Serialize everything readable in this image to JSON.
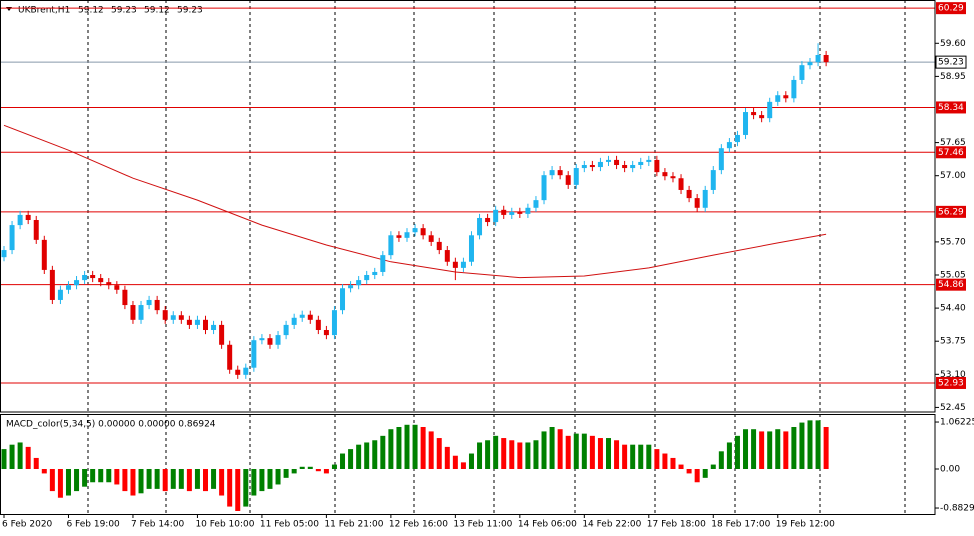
{
  "chart_data": [
    {
      "type": "candlestick",
      "symbol": "UKBrent,H1",
      "header_prices": [
        59.12,
        59.23,
        59.12,
        59.23
      ],
      "up_color": "#1fb5ef",
      "down_color": "#e00000",
      "categories": [
        "6 Feb 2020",
        null,
        null,
        null,
        null,
        null,
        null,
        null,
        "6 Feb 19:00",
        null,
        null,
        null,
        null,
        null,
        null,
        null,
        "7 Feb 14:00",
        null,
        null,
        null,
        null,
        null,
        null,
        null,
        "10 Feb 10:00",
        null,
        null,
        null,
        null,
        null,
        null,
        null,
        "11 Feb 05:00",
        null,
        null,
        null,
        null,
        null,
        null,
        null,
        "11 Feb 21:00",
        null,
        null,
        null,
        null,
        null,
        null,
        null,
        "12 Feb 16:00",
        null,
        null,
        null,
        null,
        null,
        null,
        null,
        "13 Feb 11:00",
        null,
        null,
        null,
        null,
        null,
        null,
        null,
        "14 Feb 06:00",
        null,
        null,
        null,
        null,
        null,
        null,
        null,
        "14 Feb 22:00",
        null,
        null,
        null,
        null,
        null,
        null,
        null,
        "17 Feb 18:00",
        null,
        null,
        null,
        null,
        null,
        null,
        null,
        "18 Feb 17:00",
        null,
        null,
        null,
        null,
        null,
        null,
        null,
        "19 Feb 12:00",
        null,
        null,
        null,
        null,
        null,
        null
      ],
      "open": [
        55.4,
        55.54,
        56.03,
        56.23,
        56.13,
        55.74,
        55.15,
        54.56,
        54.76,
        54.85,
        54.95,
        55.05,
        54.99,
        54.91,
        54.85,
        54.76,
        54.46,
        54.17,
        54.46,
        54.56,
        54.36,
        54.17,
        54.26,
        54.17,
        54.07,
        54.17,
        53.97,
        54.07,
        53.68,
        53.19,
        53.09,
        53.23,
        53.77,
        53.81,
        53.68,
        53.87,
        54.07,
        54.21,
        54.27,
        54.17,
        53.97,
        53.87,
        54.36,
        54.79,
        54.85,
        54.95,
        55.05,
        55.11,
        55.44,
        55.83,
        55.78,
        55.89,
        55.97,
        55.83,
        55.7,
        55.54,
        55.31,
        55.19,
        55.31,
        55.83,
        56.17,
        56.09,
        56.33,
        56.23,
        56.29,
        56.25,
        56.37,
        56.52,
        57.01,
        57.11,
        57.01,
        56.82,
        57.15,
        57.21,
        57.17,
        57.27,
        57.31,
        57.21,
        57.15,
        57.21,
        57.27,
        57.31,
        57.07,
        56.99,
        56.95,
        56.72,
        56.56,
        56.37,
        56.72,
        57.11,
        57.54,
        57.66,
        57.8,
        58.25,
        58.19,
        58.13,
        58.45,
        58.58,
        58.52,
        58.88,
        59.17,
        59.23,
        59.37
      ],
      "high": [
        55.62,
        56.11,
        56.31,
        56.31,
        56.21,
        55.82,
        55.23,
        54.84,
        54.93,
        55.03,
        55.13,
        55.13,
        55.07,
        54.99,
        54.93,
        54.84,
        54.54,
        54.54,
        54.64,
        54.64,
        54.44,
        54.34,
        54.34,
        54.25,
        54.25,
        54.25,
        54.15,
        54.15,
        53.76,
        53.27,
        53.31,
        53.85,
        53.89,
        53.89,
        53.95,
        54.15,
        54.29,
        54.35,
        54.35,
        54.25,
        54.05,
        54.44,
        54.87,
        54.93,
        55.03,
        55.13,
        55.19,
        55.52,
        55.91,
        55.91,
        55.97,
        56.05,
        56.05,
        55.91,
        55.78,
        55.62,
        55.39,
        55.39,
        55.91,
        56.25,
        56.25,
        56.41,
        56.41,
        56.37,
        56.37,
        56.45,
        56.6,
        57.09,
        57.19,
        57.19,
        57.09,
        57.23,
        57.29,
        57.29,
        57.35,
        57.39,
        57.39,
        57.29,
        57.29,
        57.35,
        57.39,
        57.39,
        57.15,
        57.07,
        57.03,
        56.8,
        56.64,
        56.8,
        57.19,
        57.62,
        57.74,
        57.88,
        58.33,
        58.33,
        58.27,
        58.53,
        58.66,
        58.66,
        58.96,
        59.25,
        59.31,
        59.6,
        59.45
      ],
      "low": [
        55.32,
        55.46,
        55.95,
        56.05,
        55.66,
        55.07,
        54.48,
        54.48,
        54.68,
        54.77,
        54.87,
        54.91,
        54.83,
        54.77,
        54.68,
        54.38,
        54.09,
        54.09,
        54.38,
        54.28,
        54.09,
        54.09,
        54.09,
        53.99,
        53.99,
        53.89,
        53.89,
        53.6,
        53.11,
        53.01,
        53.01,
        53.15,
        53.69,
        53.6,
        53.6,
        53.79,
        53.99,
        54.13,
        54.09,
        53.89,
        53.79,
        53.79,
        54.28,
        54.71,
        54.77,
        54.87,
        54.97,
        55.03,
        55.36,
        55.7,
        55.7,
        55.81,
        55.75,
        55.62,
        55.46,
        55.23,
        54.95,
        55.11,
        55.23,
        55.75,
        56.01,
        56.01,
        56.15,
        56.15,
        56.17,
        56.17,
        56.29,
        56.44,
        56.93,
        56.93,
        56.74,
        56.74,
        57.07,
        57.09,
        57.09,
        57.19,
        57.13,
        57.07,
        57.07,
        57.13,
        57.19,
        56.99,
        56.91,
        56.87,
        56.64,
        56.48,
        56.29,
        56.29,
        56.64,
        57.03,
        57.46,
        57.58,
        57.72,
        58.11,
        58.05,
        58.05,
        58.37,
        58.44,
        58.44,
        58.8,
        59.09,
        59.15,
        59.15
      ],
      "close": [
        55.54,
        56.03,
        56.23,
        56.13,
        55.74,
        55.15,
        54.56,
        54.76,
        54.85,
        54.95,
        55.05,
        54.99,
        54.91,
        54.85,
        54.76,
        54.46,
        54.17,
        54.46,
        54.56,
        54.36,
        54.17,
        54.26,
        54.17,
        54.07,
        54.17,
        53.97,
        54.07,
        53.68,
        53.19,
        53.09,
        53.23,
        53.77,
        53.81,
        53.68,
        53.87,
        54.07,
        54.21,
        54.27,
        54.17,
        53.97,
        53.87,
        54.36,
        54.79,
        54.85,
        54.95,
        55.05,
        55.11,
        55.44,
        55.83,
        55.78,
        55.89,
        55.97,
        55.83,
        55.7,
        55.54,
        55.31,
        55.19,
        55.31,
        55.83,
        56.17,
        56.09,
        56.33,
        56.23,
        56.29,
        56.25,
        56.37,
        56.52,
        57.01,
        57.11,
        57.01,
        56.82,
        57.15,
        57.21,
        57.17,
        57.27,
        57.31,
        57.21,
        57.15,
        57.21,
        57.27,
        57.31,
        57.07,
        56.99,
        56.95,
        56.72,
        56.56,
        56.37,
        56.72,
        57.11,
        57.54,
        57.66,
        57.8,
        58.25,
        58.19,
        58.13,
        58.45,
        58.58,
        58.52,
        58.88,
        59.17,
        59.23,
        59.37,
        59.23
      ],
      "ma": {
        "color": "#d01010",
        "x": [
          0,
          8,
          16,
          24,
          32,
          40,
          48,
          56,
          64,
          72,
          80,
          88,
          96,
          102
        ],
        "values": [
          57.99,
          57.5,
          56.95,
          56.52,
          56.03,
          55.64,
          55.31,
          55.11,
          55.0,
          55.03,
          55.19,
          55.44,
          55.68,
          55.85
        ]
      },
      "levels": [
        60.29,
        58.34,
        57.46,
        56.29,
        54.86,
        52.93
      ],
      "level_color": "#e00000",
      "bid": 59.23,
      "ylim": [
        52.36,
        60.45
      ],
      "yticks": [
        {
          "value": 59.6,
          "label": "59.60"
        },
        58.95,
        57.65,
        {
          "value": 57,
          "label": "57.00"
        },
        {
          "value": 55.7,
          "label": "55.70"
        },
        55.05,
        {
          "value": 54.4,
          "label": "54.40"
        },
        53.75,
        {
          "value": 53.1,
          "label": "53.10"
        },
        52.45
      ]
    },
    {
      "type": "histogram",
      "title": "MACD_color(5,34,5) 0.00000 0.00000 0.86924",
      "up_color": "#008000",
      "down_color": "#ff0000",
      "values": [
        0.45,
        0.55,
        0.6,
        0.5,
        0.25,
        -0.1,
        -0.5,
        -0.65,
        -0.6,
        -0.5,
        -0.4,
        -0.3,
        -0.3,
        -0.3,
        -0.35,
        -0.5,
        -0.6,
        -0.55,
        -0.45,
        -0.45,
        -0.5,
        -0.45,
        -0.45,
        -0.5,
        -0.45,
        -0.5,
        -0.45,
        -0.6,
        -0.85,
        -0.95,
        -0.85,
        -0.6,
        -0.5,
        -0.45,
        -0.35,
        -0.2,
        -0.1,
        0.05,
        0.05,
        -0.05,
        -0.1,
        0.1,
        0.35,
        0.45,
        0.55,
        0.6,
        0.65,
        0.75,
        0.9,
        0.95,
        1.0,
        1.0,
        0.95,
        0.85,
        0.7,
        0.5,
        0.3,
        0.15,
        0.35,
        0.6,
        0.65,
        0.75,
        0.7,
        0.65,
        0.6,
        0.6,
        0.65,
        0.85,
        0.95,
        0.9,
        0.75,
        0.8,
        0.8,
        0.75,
        0.7,
        0.7,
        0.65,
        0.55,
        0.55,
        0.55,
        0.55,
        0.45,
        0.35,
        0.25,
        0.1,
        -0.1,
        -0.3,
        -0.2,
        0.1,
        0.4,
        0.6,
        0.75,
        0.9,
        0.9,
        0.85,
        0.85,
        0.9,
        0.85,
        0.95,
        1.05,
        1.1,
        1.1,
        0.95
      ],
      "ylim": [
        -1.018,
        1.244
      ],
      "yticks": [
        1.06225,
        {
          "value": 0,
          "label": "0.00"
        },
        -0.88292
      ]
    }
  ]
}
